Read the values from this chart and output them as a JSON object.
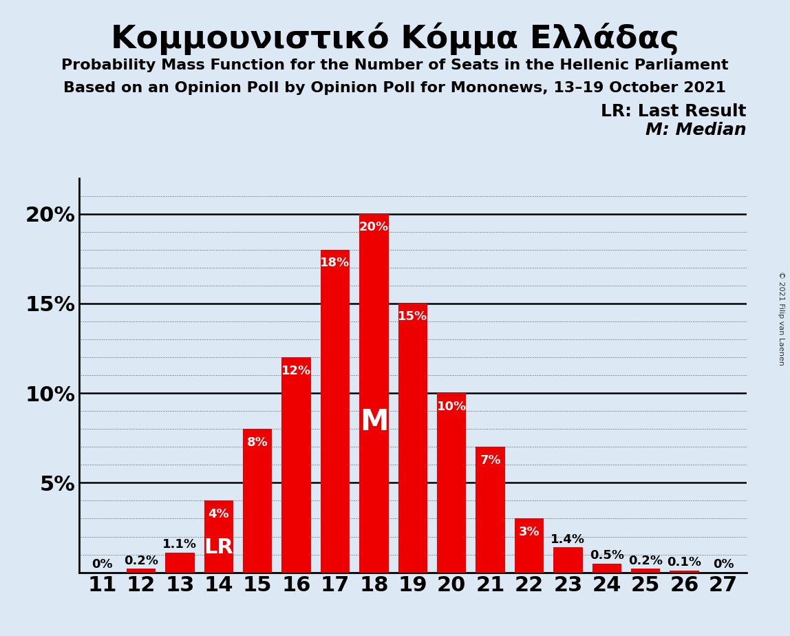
{
  "title": "Κομμουνιστικό Κόμμα Ελλάδας",
  "subtitle1": "Probability Mass Function for the Number of Seats in the Hellenic Parliament",
  "subtitle2": "Based on an Opinion Poll by Opinion Poll for Mononews, 13–19 October 2021",
  "copyright": "© 2021 Filip van Laenen",
  "categories": [
    11,
    12,
    13,
    14,
    15,
    16,
    17,
    18,
    19,
    20,
    21,
    22,
    23,
    24,
    25,
    26,
    27
  ],
  "values": [
    0.0,
    0.2,
    1.1,
    4.0,
    8.0,
    12.0,
    18.0,
    20.0,
    15.0,
    10.0,
    7.0,
    3.0,
    1.4,
    0.5,
    0.2,
    0.1,
    0.0
  ],
  "bar_color": "#EE0000",
  "background_color": "#dce9f5",
  "lr_bar": 14,
  "median_bar": 18,
  "ylim": [
    0,
    22
  ],
  "yticks": [
    0,
    5,
    10,
    15,
    20
  ],
  "ytick_labels": [
    "",
    "5%",
    "10%",
    "15%",
    "20%"
  ],
  "legend_lr": "LR: Last Result",
  "legend_m": "M: Median",
  "title_fontsize": 34,
  "subtitle_fontsize": 16,
  "tick_fontsize": 22,
  "label_fontsize": 13,
  "lr_fontsize": 22,
  "m_fontsize": 30,
  "legend_fontsize": 18
}
